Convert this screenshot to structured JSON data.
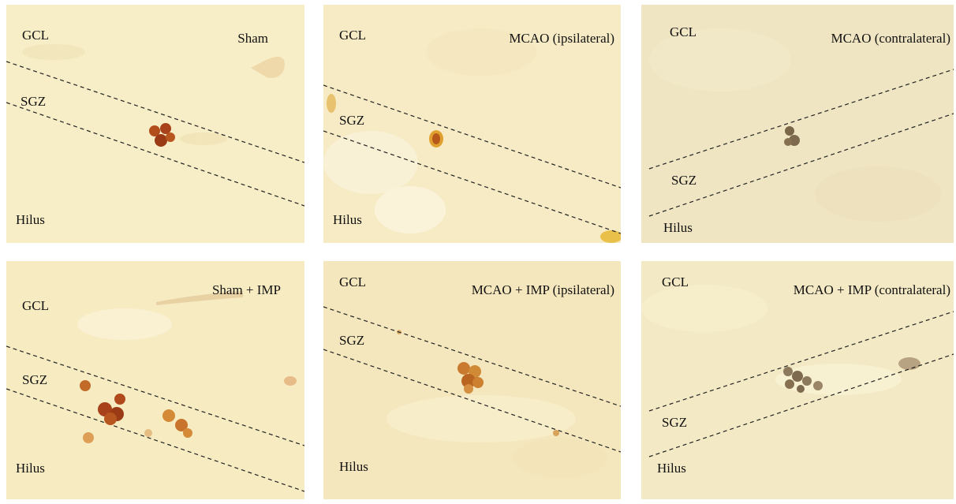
{
  "panels": [
    {
      "condition": "Sham",
      "gcl": "GCL",
      "sgz": "SGZ",
      "hilus": "Hilus"
    },
    {
      "condition": "MCAO (ipsilateral)",
      "gcl": "GCL",
      "sgz": "SGZ",
      "hilus": "Hilus"
    },
    {
      "condition": "MCAO (contralateral)",
      "gcl": "GCL",
      "sgz": "SGZ",
      "hilus": "Hilus"
    },
    {
      "condition": "Sham + IMP",
      "gcl": "GCL",
      "sgz": "SGZ",
      "hilus": "Hilus"
    },
    {
      "condition": "MCAO + IMP (ipsilateral)",
      "gcl": "GCL",
      "sgz": "SGZ",
      "hilus": "Hilus"
    },
    {
      "condition": "MCAO + IMP (contralateral)",
      "gcl": "GCL",
      "sgz": "SGZ",
      "hilus": "Hilus"
    }
  ],
  "colors": {
    "tissue": "#f6ecc3",
    "brdu_stain": "#a8461a",
    "faint_stain": "#7e6a4f"
  }
}
